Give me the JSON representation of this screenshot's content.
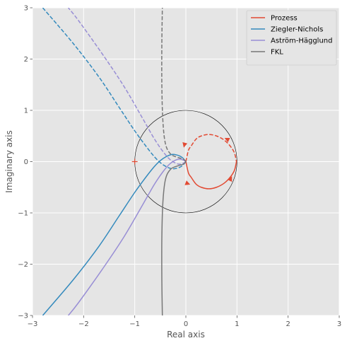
{
  "chart_data": {
    "type": "line",
    "title": "",
    "xlabel": "Real axis",
    "ylabel": "Imaginary axis",
    "xlim": [
      -3,
      3
    ],
    "ylim": [
      -3,
      3
    ],
    "x_ticks": [
      -3,
      -2,
      -1,
      0,
      1,
      2,
      3
    ],
    "y_ticks": [
      -3,
      -2,
      -1,
      0,
      1,
      2,
      3
    ],
    "x_tick_labels": [
      "−3",
      "−2",
      "−1",
      "0",
      "1",
      "2",
      "3"
    ],
    "y_tick_labels": [
      "−3",
      "−2",
      "−1",
      "0",
      "1",
      "2",
      "3"
    ],
    "grid": true,
    "legend_position": "top-right",
    "critical_point": {
      "x": -1,
      "y": 0,
      "marker": "+",
      "color": "#e24a33"
    },
    "unit_circle": {
      "center": [
        0,
        0
      ],
      "radius": 1,
      "color": "#000000"
    },
    "series": [
      {
        "name": "Prozess",
        "color": "#e24a33",
        "points": [
          [
            0,
            0
          ],
          [
            0.05,
            -0.22
          ],
          [
            0.1,
            -0.3
          ],
          [
            0.2,
            -0.44
          ],
          [
            0.3,
            -0.5
          ],
          [
            0.45,
            -0.53
          ],
          [
            0.6,
            -0.5
          ],
          [
            0.75,
            -0.42
          ],
          [
            0.87,
            -0.3
          ],
          [
            0.95,
            -0.17
          ],
          [
            0.99,
            0
          ]
        ],
        "mirror_points": [
          [
            0,
            0
          ],
          [
            0.05,
            0.22
          ],
          [
            0.1,
            0.3
          ],
          [
            0.2,
            0.44
          ],
          [
            0.3,
            0.5
          ],
          [
            0.45,
            0.53
          ],
          [
            0.6,
            0.5
          ],
          [
            0.75,
            0.42
          ],
          [
            0.87,
            0.3
          ],
          [
            0.95,
            0.17
          ],
          [
            0.99,
            0
          ]
        ],
        "arrows": [
          {
            "at": [
              0.04,
              -0.43
            ],
            "toward": [
              0.12,
              -0.46
            ]
          },
          {
            "at": [
              0.88,
              -0.33
            ],
            "toward": [
              0.93,
              -0.23
            ]
          },
          {
            "at": [
              0.8,
              0.44
            ],
            "toward": [
              0.74,
              0.47
            ]
          },
          {
            "at": [
              -0.03,
              0.32
            ],
            "toward": [
              -0.05,
              0.24
            ]
          }
        ]
      },
      {
        "name": "Ziegler-Nichols",
        "color": "#348abd",
        "points": [
          [
            0,
            0
          ],
          [
            -0.05,
            0.06
          ],
          [
            -0.1,
            0.1
          ],
          [
            -0.18,
            0.13
          ],
          [
            -0.27,
            0.14
          ],
          [
            -0.38,
            0.1
          ],
          [
            -0.5,
            0.02
          ],
          [
            -0.62,
            -0.1
          ],
          [
            -0.78,
            -0.3
          ],
          [
            -1,
            -0.6
          ],
          [
            -1.3,
            -1.05
          ],
          [
            -1.7,
            -1.65
          ],
          [
            -2.2,
            -2.3
          ],
          [
            -2.8,
            -3.0
          ]
        ],
        "mirror_points": [
          [
            0,
            0
          ],
          [
            -0.05,
            -0.06
          ],
          [
            -0.1,
            -0.1
          ],
          [
            -0.18,
            -0.13
          ],
          [
            -0.27,
            -0.14
          ],
          [
            -0.38,
            -0.1
          ],
          [
            -0.5,
            -0.02
          ],
          [
            -0.62,
            0.1
          ],
          [
            -0.78,
            0.3
          ],
          [
            -1,
            0.6
          ],
          [
            -1.3,
            1.05
          ],
          [
            -1.7,
            1.65
          ],
          [
            -2.2,
            2.3
          ],
          [
            -2.8,
            3.0
          ]
        ]
      },
      {
        "name": "Aström-Hägglund",
        "color": "#988ed5",
        "points": [
          [
            0,
            0
          ],
          [
            -0.05,
            0.03
          ],
          [
            -0.12,
            0.05
          ],
          [
            -0.2,
            0.03
          ],
          [
            -0.32,
            -0.05
          ],
          [
            -0.45,
            -0.2
          ],
          [
            -0.62,
            -0.45
          ],
          [
            -0.85,
            -0.85
          ],
          [
            -1.2,
            -1.45
          ],
          [
            -1.6,
            -2.05
          ],
          [
            -2.1,
            -2.75
          ],
          [
            -2.3,
            -3.0
          ]
        ],
        "mirror_points": [
          [
            0,
            0
          ],
          [
            -0.05,
            -0.03
          ],
          [
            -0.12,
            -0.05
          ],
          [
            -0.2,
            -0.03
          ],
          [
            -0.32,
            0.05
          ],
          [
            -0.45,
            0.2
          ],
          [
            -0.62,
            0.45
          ],
          [
            -0.85,
            0.85
          ],
          [
            -1.2,
            1.45
          ],
          [
            -1.6,
            2.05
          ],
          [
            -2.1,
            2.75
          ],
          [
            -2.3,
            3.0
          ]
        ]
      },
      {
        "name": "FKL",
        "color": "#777777",
        "points": [
          [
            0,
            0
          ],
          [
            -0.05,
            -0.05
          ],
          [
            -0.15,
            -0.08
          ],
          [
            -0.3,
            -0.15
          ],
          [
            -0.4,
            -0.35
          ],
          [
            -0.45,
            -0.8
          ],
          [
            -0.47,
            -1.5
          ],
          [
            -0.47,
            -2.3
          ],
          [
            -0.46,
            -3.0
          ]
        ],
        "mirror_points": [
          [
            0,
            0
          ],
          [
            -0.05,
            0.05
          ],
          [
            -0.15,
            0.08
          ],
          [
            -0.3,
            0.15
          ],
          [
            -0.4,
            0.35
          ],
          [
            -0.45,
            0.8
          ],
          [
            -0.47,
            1.5
          ],
          [
            -0.47,
            2.3
          ],
          [
            -0.46,
            3.0
          ]
        ]
      }
    ]
  }
}
